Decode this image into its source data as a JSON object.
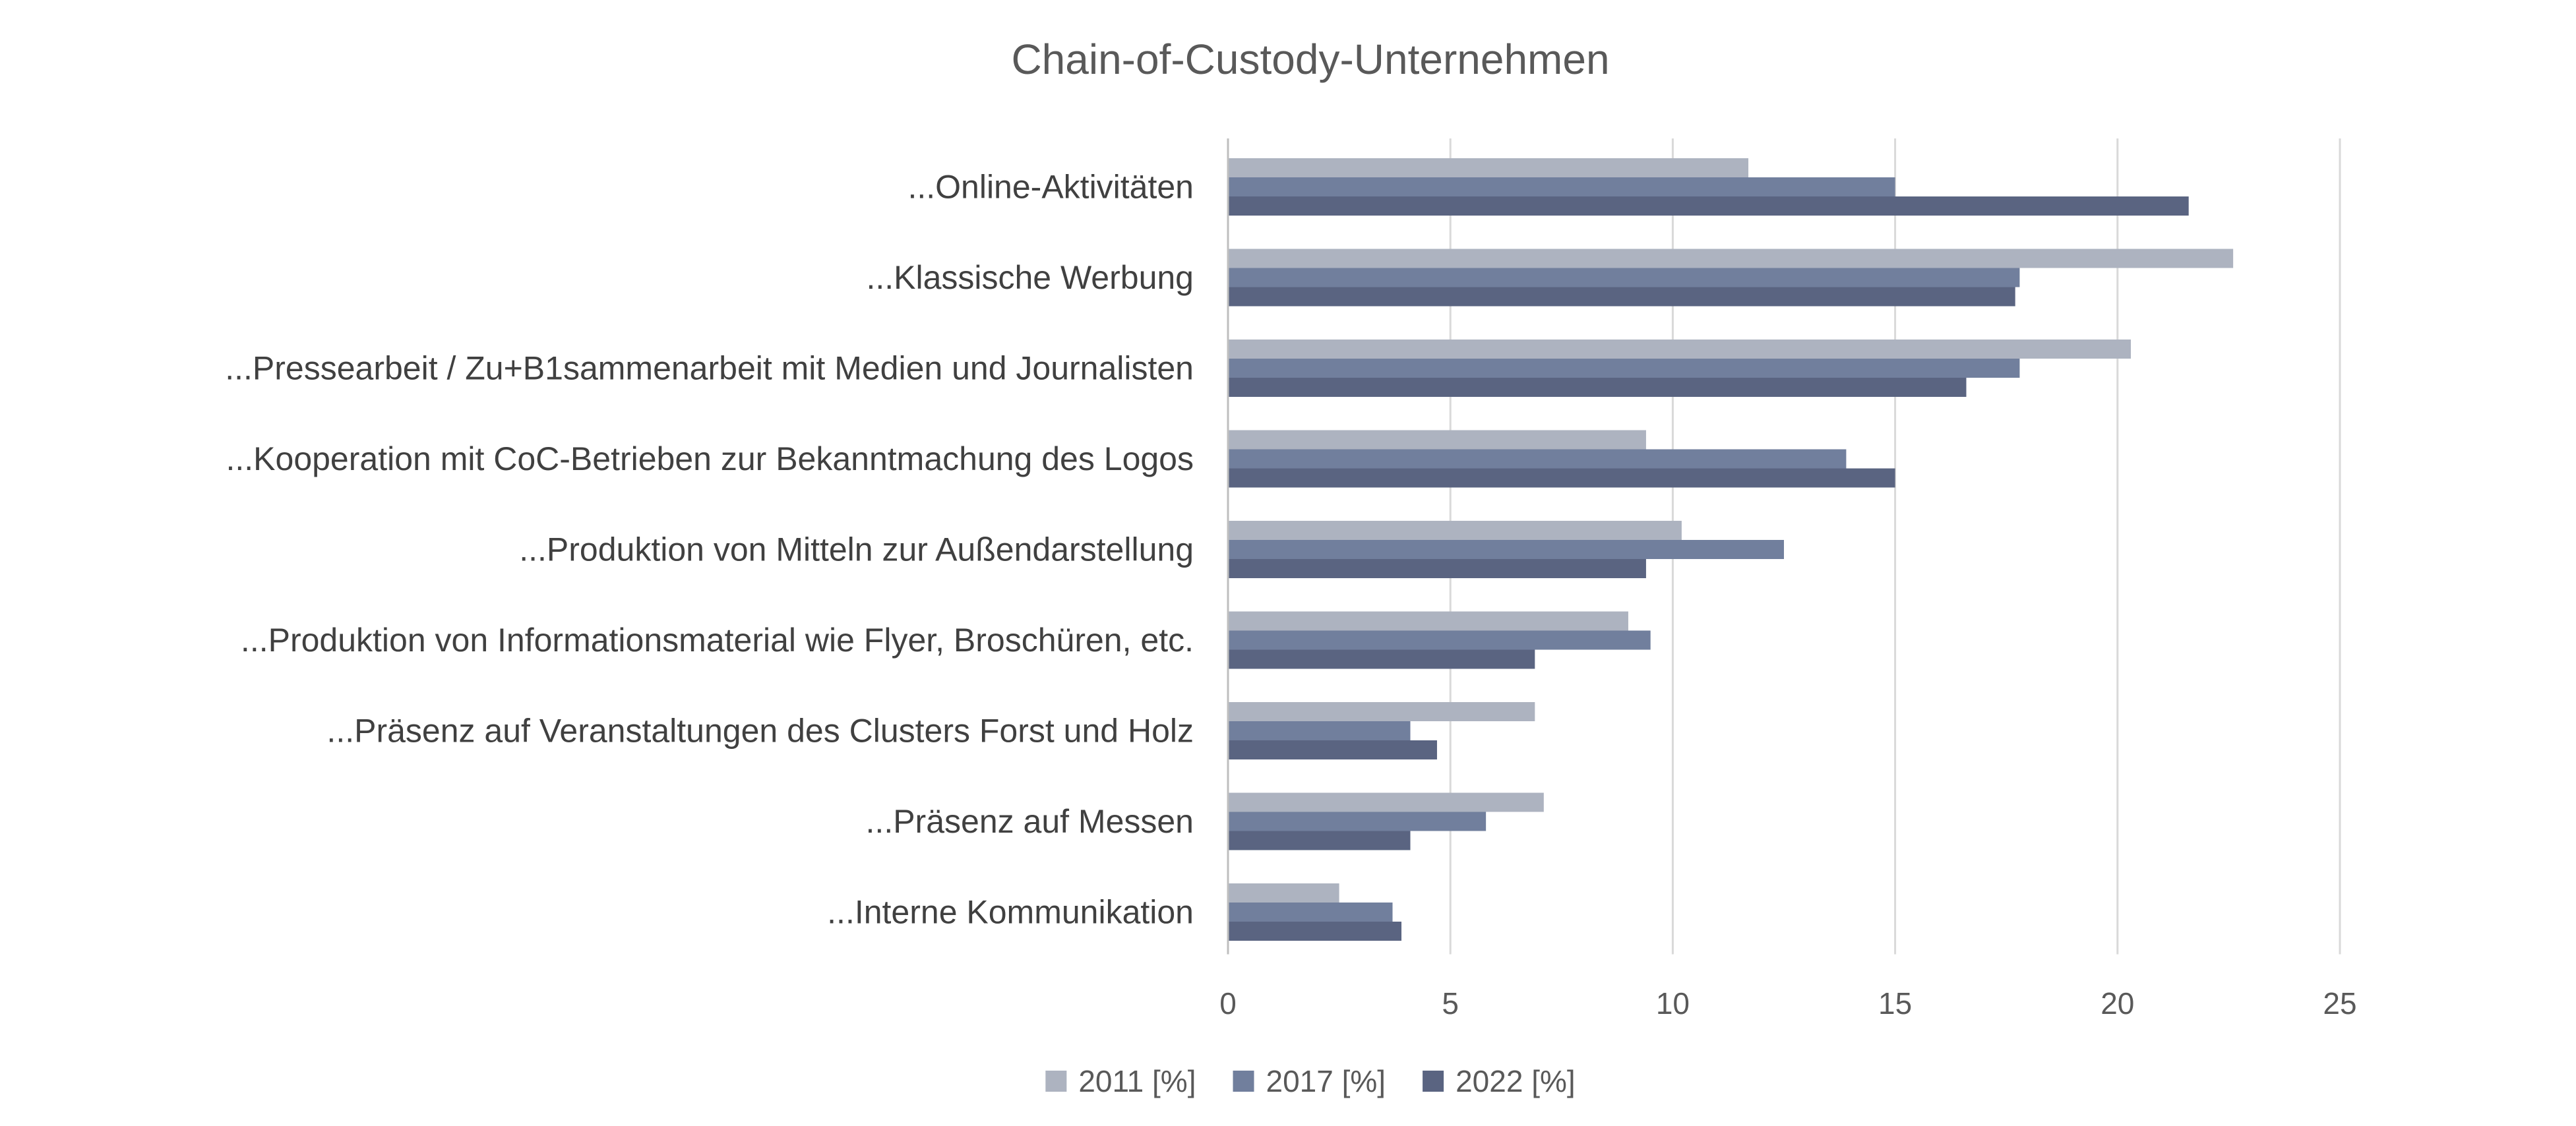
{
  "chart_data": {
    "type": "bar",
    "orientation": "horizontal",
    "title": "Chain-of-Custody-Unternehmen",
    "xlabel": "",
    "ylabel": "",
    "xlim": [
      0,
      25
    ],
    "x_ticks": [
      0,
      5,
      10,
      15,
      20,
      25
    ],
    "grid": true,
    "legend_position": "bottom",
    "categories": [
      "...Online-Aktivitäten",
      "...Klassische Werbung",
      "...Pressearbeit / Zu+B1sammenarbeit mit Medien und Journalisten",
      "...Kooperation mit CoC-Betrieben zur Bekanntmachung des Logos",
      "...Produktion von Mitteln zur Außendarstellung",
      "...Produktion von Informationsmaterial wie Flyer, Broschüren, etc.",
      "...Präsenz auf Veranstaltungen des Clusters Forst und Holz",
      "...Präsenz auf Messen",
      "...Interne Kommunikation"
    ],
    "series": [
      {
        "name": "2011 [%]",
        "color": "#adb3c0",
        "values": [
          11.7,
          22.6,
          20.3,
          9.4,
          10.2,
          9.0,
          6.9,
          7.1,
          2.5
        ]
      },
      {
        "name": "2017 [%]",
        "color": "#717f9d",
        "values": [
          15.0,
          17.8,
          17.8,
          13.9,
          12.5,
          9.5,
          4.1,
          5.8,
          3.7
        ]
      },
      {
        "name": "2022 [%]",
        "color": "#5a6481",
        "values": [
          21.6,
          17.7,
          16.6,
          15.0,
          9.4,
          6.9,
          4.7,
          4.1,
          3.9
        ]
      }
    ]
  }
}
